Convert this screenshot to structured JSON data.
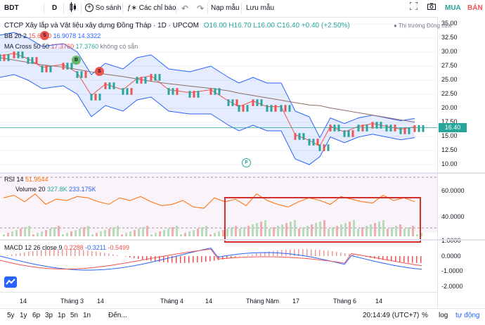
{
  "toolbar": {
    "symbol": "BDT",
    "interval": "D",
    "compare_label": "So sánh",
    "indicators_label": "Các chỉ báo",
    "template_label": "Nạp mẫu",
    "save_label": "Lưu mẫu",
    "buy_label": "MUA",
    "sell_label": "BÁN"
  },
  "header": {
    "title": "CTCP Xây lắp và Vật liệu xây dựng Đồng Tháp · 1D · UPCOM",
    "ohlc_o": "O16.00",
    "ohlc_h": "H16.70",
    "ohlc_l": "L16.00",
    "ohlc_c": "C16.40",
    "change": "+0.40 (+2.50%)",
    "market_status": "Thị trường Đóng cửa"
  },
  "legends": {
    "bb_name": "BB 20 2",
    "bb_v1": "15.6200",
    "bb_v2": "16.9078",
    "bb_v3": "14.3322",
    "ma_name": "MA Cross 50 50",
    "ma_v1": "17.3760",
    "ma_v2": "17.3760",
    "ma_v3": "không có sẵn",
    "rsi_name": "RSI 14",
    "rsi_v": "51.9544",
    "vol_name": "Volume 20",
    "vol_v1": "327.8K",
    "vol_v2": "233.175K",
    "macd_name": "MACD 12 26 close 9",
    "macd_v1": "0.2288",
    "macd_v2": "-0.3211",
    "macd_v3": "-0.5499"
  },
  "markers": {
    "b": "B",
    "s": "S",
    "f": "F"
  },
  "price_axis": [
    "35.00",
    "32.50",
    "30.00",
    "27.50",
    "25.00",
    "22.50",
    "20.00",
    "17.50",
    "15.00",
    "12.50",
    "10.00"
  ],
  "current_price": "16.40",
  "rsi_axis": [
    "60.0000",
    "40.0000"
  ],
  "macd_axis": [
    "1.0000",
    "0.0000",
    "-1.0000",
    "-2.0000"
  ],
  "time_axis": [
    "14",
    "Tháng 3",
    "14",
    "Tháng 4",
    "14",
    "Tháng Năm",
    "17",
    "Tháng 6",
    "14"
  ],
  "colors": {
    "up": "#26a69a",
    "down": "#ef5350",
    "bb": "#2962ff",
    "rsi": "#ff6d00",
    "highlight": "#d32f2f"
  },
  "bottombar": {
    "ranges": [
      "5y",
      "1y",
      "6p",
      "3p",
      "1p",
      "5n",
      "1n"
    ],
    "goto": "Đến...",
    "clock": "20:14:49 (UTC+7)",
    "pct": "%",
    "log": "log",
    "auto": "tự động"
  }
}
